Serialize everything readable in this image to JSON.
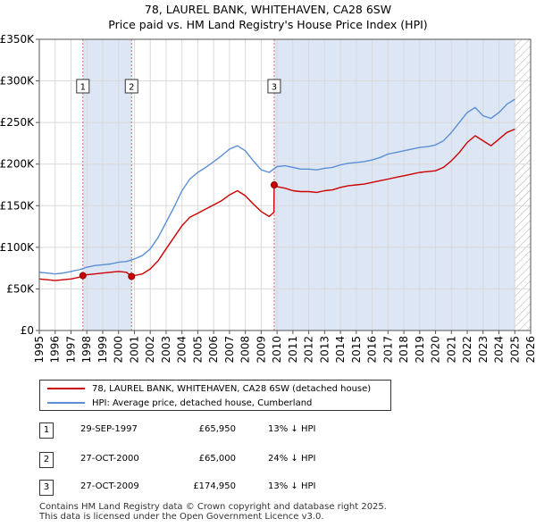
{
  "title_line1": "78, LAUREL BANK, WHITEHAVEN, CA28 6SW",
  "title_line2": "Price paid vs. HM Land Registry's House Price Index (HPI)",
  "colors": {
    "property": "#cc0000",
    "hpi": "#5b8fd6",
    "shade": "#dde6f5",
    "marker_border": "#333333",
    "vline": "#e06666"
  },
  "chart_data": {
    "type": "line",
    "xlim": [
      1995,
      2026
    ],
    "ylim": [
      0,
      350000
    ],
    "y_ticks": [
      {
        "value": 0,
        "label": "£0"
      },
      {
        "value": 50000,
        "label": "£50K"
      },
      {
        "value": 100000,
        "label": "£100K"
      },
      {
        "value": 150000,
        "label": "£150K"
      },
      {
        "value": 200000,
        "label": "£200K"
      },
      {
        "value": 250000,
        "label": "£250K"
      },
      {
        "value": 300000,
        "label": "£300K"
      },
      {
        "value": 350000,
        "label": "£350K"
      }
    ],
    "x_ticks": [
      "1995",
      "1996",
      "1997",
      "1998",
      "1999",
      "2000",
      "2001",
      "2002",
      "2003",
      "2004",
      "2005",
      "2006",
      "2007",
      "2008",
      "2009",
      "2010",
      "2011",
      "2012",
      "2013",
      "2014",
      "2015",
      "2016",
      "2017",
      "2018",
      "2019",
      "2020",
      "2021",
      "2022",
      "2023",
      "2024",
      "2025",
      "2026"
    ],
    "grid": true,
    "shaded_ranges": [
      [
        1997.75,
        2000.82
      ],
      [
        2009.82,
        2025.0
      ]
    ],
    "hatched_from": 2025.0,
    "series": [
      {
        "name": "78, LAUREL BANK, WHITEHAVEN, CA28 6SW (detached house)",
        "color_key": "property",
        "x": [
          1995.0,
          1995.5,
          1996.0,
          1996.5,
          1997.0,
          1997.5,
          1997.75,
          1998.0,
          1998.5,
          1999.0,
          1999.5,
          2000.0,
          2000.5,
          2000.82,
          2001.0,
          2001.5,
          2002.0,
          2002.5,
          2003.0,
          2003.5,
          2004.0,
          2004.5,
          2005.0,
          2005.5,
          2006.0,
          2006.5,
          2007.0,
          2007.5,
          2008.0,
          2008.5,
          2009.0,
          2009.5,
          2009.8,
          2009.82,
          2010.0,
          2010.5,
          2011.0,
          2011.5,
          2012.0,
          2012.5,
          2013.0,
          2013.5,
          2014.0,
          2014.5,
          2015.0,
          2015.5,
          2016.0,
          2016.5,
          2017.0,
          2017.5,
          2018.0,
          2018.5,
          2019.0,
          2019.5,
          2020.0,
          2020.5,
          2021.0,
          2021.5,
          2022.0,
          2022.5,
          2023.0,
          2023.5,
          2024.0,
          2024.5,
          2025.0
        ],
        "values": [
          62000,
          61000,
          60000,
          61000,
          62000,
          64000,
          65950,
          67000,
          68000,
          69000,
          70000,
          71000,
          70000,
          65000,
          66000,
          68000,
          74000,
          84000,
          98000,
          112000,
          126000,
          136000,
          141000,
          146000,
          151000,
          156000,
          163000,
          168000,
          162000,
          152000,
          143000,
          137000,
          142000,
          174950,
          173000,
          171000,
          168000,
          167000,
          167000,
          166000,
          168000,
          169000,
          172000,
          174000,
          175000,
          176000,
          178000,
          180000,
          182000,
          184000,
          186000,
          188000,
          190000,
          191000,
          192000,
          196000,
          204000,
          214000,
          226000,
          234000,
          228000,
          222000,
          230000,
          238000,
          242000
        ]
      },
      {
        "name": "HPI: Average price, detached house, Cumberland",
        "color_key": "hpi",
        "x": [
          1995.0,
          1995.5,
          1996.0,
          1996.5,
          1997.0,
          1997.5,
          1998.0,
          1998.5,
          1999.0,
          1999.5,
          2000.0,
          2000.5,
          2001.0,
          2001.5,
          2002.0,
          2002.5,
          2003.0,
          2003.5,
          2004.0,
          2004.5,
          2005.0,
          2005.5,
          2006.0,
          2006.5,
          2007.0,
          2007.5,
          2008.0,
          2008.5,
          2009.0,
          2009.5,
          2010.0,
          2010.5,
          2011.0,
          2011.5,
          2012.0,
          2012.5,
          2013.0,
          2013.5,
          2014.0,
          2014.5,
          2015.0,
          2015.5,
          2016.0,
          2016.5,
          2017.0,
          2017.5,
          2018.0,
          2018.5,
          2019.0,
          2019.5,
          2020.0,
          2020.5,
          2021.0,
          2021.5,
          2022.0,
          2022.5,
          2023.0,
          2023.5,
          2024.0,
          2024.5,
          2025.0
        ],
        "values": [
          70000,
          69000,
          68000,
          69000,
          71000,
          73000,
          76000,
          78000,
          79000,
          80000,
          82000,
          83000,
          86000,
          90000,
          98000,
          112000,
          130000,
          148000,
          168000,
          182000,
          190000,
          196000,
          203000,
          210000,
          218000,
          222000,
          216000,
          204000,
          193000,
          190000,
          197000,
          198000,
          196000,
          194000,
          194000,
          193000,
          195000,
          196000,
          199000,
          201000,
          202000,
          203000,
          205000,
          208000,
          212000,
          214000,
          216000,
          218000,
          220000,
          221000,
          223000,
          228000,
          238000,
          250000,
          262000,
          268000,
          258000,
          255000,
          262000,
          272000,
          278000
        ]
      }
    ],
    "sales": [
      {
        "label": "1",
        "x": 1997.75,
        "value": 65950
      },
      {
        "label": "2",
        "x": 2000.82,
        "value": 65000
      },
      {
        "label": "3",
        "x": 2009.82,
        "value": 174950
      }
    ]
  },
  "legend": {
    "property_label": "78, LAUREL BANK, WHITEHAVEN, CA28 6SW (detached house)",
    "hpi_label": "HPI: Average price, detached house, Cumberland"
  },
  "sales_table": [
    {
      "num": "1",
      "date": "29-SEP-1997",
      "price": "£65,950",
      "hpi": "13% ↓ HPI"
    },
    {
      "num": "2",
      "date": "27-OCT-2000",
      "price": "£65,000",
      "hpi": "24% ↓ HPI"
    },
    {
      "num": "3",
      "date": "27-OCT-2009",
      "price": "£174,950",
      "hpi": "13% ↓ HPI"
    }
  ],
  "footer_line1": "Contains HM Land Registry data © Crown copyright and database right 2025.",
  "footer_line2": "This data is licensed under the Open Government Licence v3.0."
}
